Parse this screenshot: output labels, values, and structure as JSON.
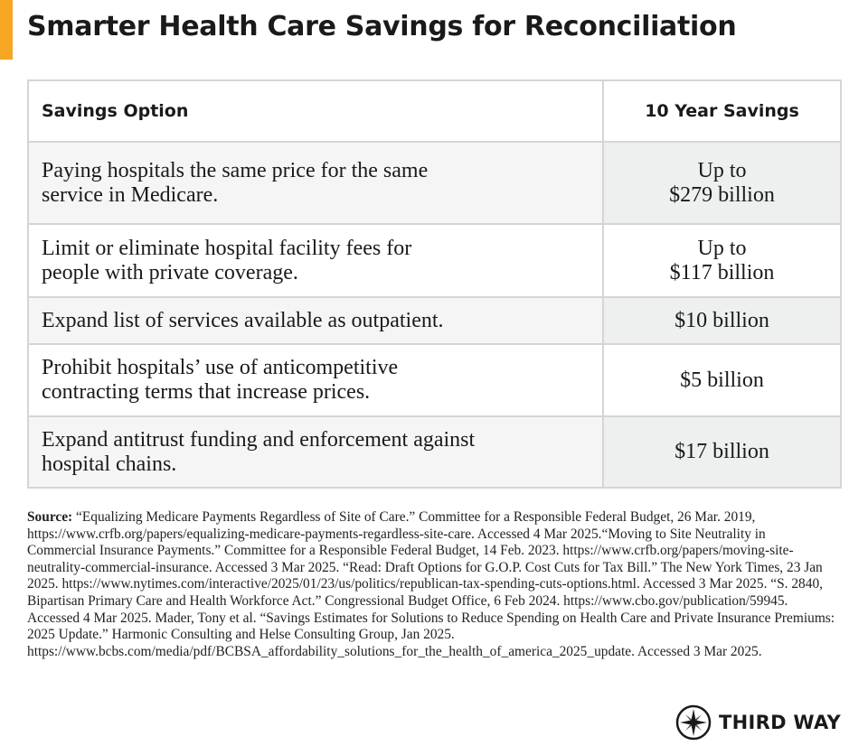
{
  "header": {
    "title": "Smarter Health Care Savings for Reconciliation"
  },
  "table": {
    "columns": [
      "Savings Option",
      "10 Year Savings"
    ],
    "rows": [
      [
        "Paying hospitals the same price for the same\nservice in Medicare.",
        "Up to\n$279 billion"
      ],
      [
        "Limit or eliminate hospital facility fees for\npeople with private coverage.",
        "Up to\n$117 billion"
      ],
      [
        "Expand list of services available as outpatient.",
        "$10 billion"
      ],
      [
        "Prohibit hospitals’ use of anticompetitive\ncontracting terms that increase prices.",
        "$5 billion"
      ],
      [
        "Expand antitrust funding and enforcement against\nhospital chains.",
        "$17 billion"
      ]
    ]
  },
  "source": {
    "label": "Source:",
    "text": "“Equalizing Medicare Payments Regardless of Site of Care.” Committee for a Responsible Federal Budget, 26 Mar. 2019, https://www.crfb.org/papers/equalizing-medicare-payments-regardless-site-care. Accessed 4 Mar 2025.“Moving to Site Neutrality in Commercial Insurance Payments.” Committee for a Responsible Federal Budget, 14 Feb. 2023. https://www.crfb.org/papers/moving-site-neutrality-commercial-insurance. Accessed 3 Mar 2025. “Read: Draft Options for G.O.P. Cost Cuts for Tax Bill.” The New York Times, 23 Jan 2025. https://www.nytimes.com/interactive/2025/01/23/us/politics/republican-tax-spending-cuts-options.html. Accessed 3 Mar 2025. “S. 2840, Bipartisan Primary Care and Health Workforce Act.” Congressional Budget Office, 6 Feb 2024. https://www.cbo.gov/publication/59945. Accessed 4 Mar 2025. Mader, Tony et al. “Savings Estimates for Solutions to Reduce Spending on Health Care and Private Insurance Premiums: 2025 Update.” Harmonic Consulting and Helse Consulting Group, Jan 2025. https://www.bcbs.com/media/pdf/BCBSA_affordability_solutions_for_the_health_of_america_2025_update. Accessed 3 Mar 2025."
  },
  "logo": {
    "text": "THIRD WAY"
  }
}
